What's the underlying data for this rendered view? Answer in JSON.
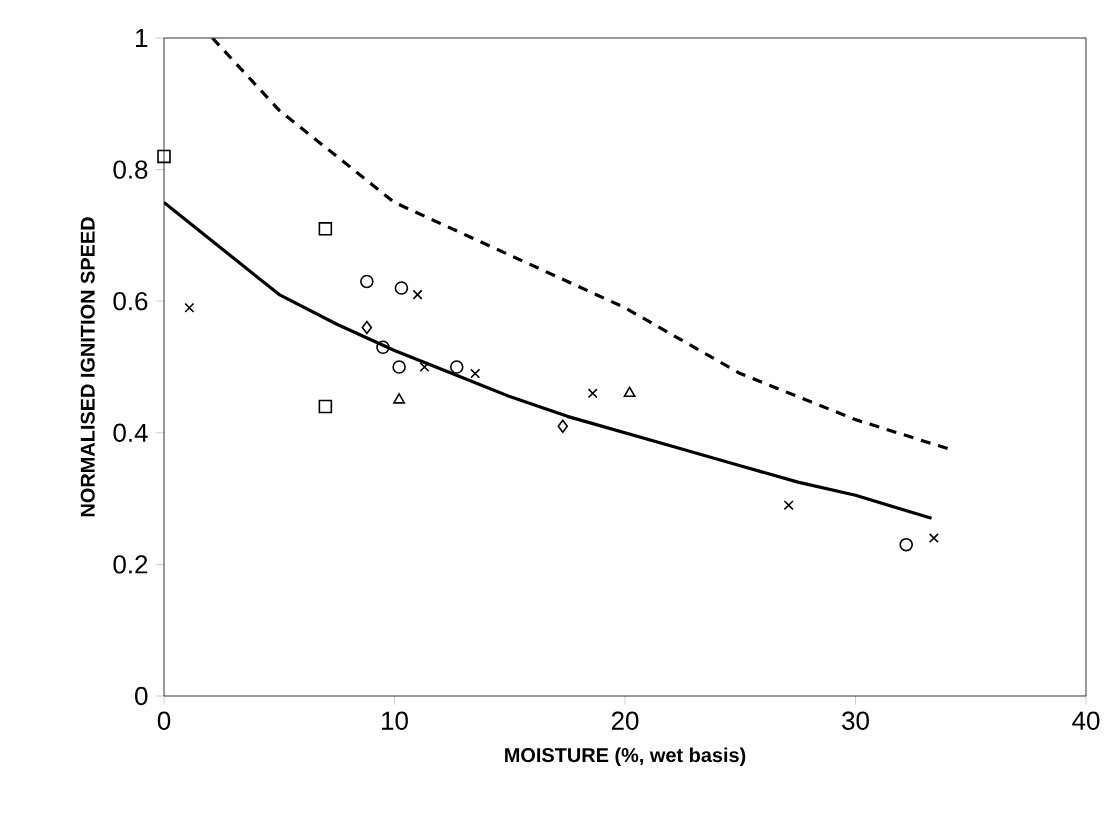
{
  "chart_data": {
    "type": "scatter",
    "xlabel": "MOISTURE (%, wet basis)",
    "ylabel": "NORMALISED IGNITION SPEED",
    "xlim": [
      0,
      40
    ],
    "ylim": [
      0,
      1
    ],
    "xticks": [
      0,
      10,
      20,
      30,
      40
    ],
    "yticks": [
      0,
      {
        "value": 0.2,
        "label": "0.2"
      },
      {
        "value": 0.4,
        "label": "0.4"
      },
      {
        "value": 0.6,
        "label": "0.6"
      },
      {
        "value": 0.8,
        "label": "0.8"
      },
      1
    ],
    "grid": false,
    "series": [
      {
        "color": "#000000",
        "marker": "square",
        "x": [
          0,
          7.0,
          7.0
        ],
        "values": [
          0.82,
          0.71,
          0.44
        ]
      },
      {
        "color": "#000000",
        "marker": "cross",
        "x": [
          1.1,
          11.0,
          11.3,
          13.5,
          18.6,
          27.1,
          33.4
        ],
        "values": [
          0.59,
          0.61,
          0.5,
          0.49,
          0.46,
          0.29,
          0.24
        ]
      },
      {
        "color": "#000000",
        "marker": "circle",
        "x": [
          8.8,
          10.2,
          10.3,
          9.5,
          12.7,
          32.2
        ],
        "values": [
          0.63,
          0.5,
          0.62,
          0.53,
          0.5,
          0.23
        ]
      },
      {
        "color": "#000000",
        "marker": "diamond",
        "x": [
          8.8,
          17.3
        ],
        "values": [
          0.56,
          0.41
        ]
      },
      {
        "color": "#000000",
        "marker": "triangle",
        "x": [
          10.2,
          20.2
        ],
        "values": [
          0.45,
          0.46
        ]
      },
      {
        "type": "line",
        "color": "#000000",
        "line_style": "solid",
        "x": [
          0,
          2.5,
          5,
          7.5,
          10,
          12.5,
          15,
          17.5,
          20,
          22.5,
          25,
          27.5,
          30,
          33.3
        ],
        "values": [
          0.75,
          0.68,
          0.61,
          0.565,
          0.525,
          0.49,
          0.455,
          0.425,
          0.4,
          0.375,
          0.35,
          0.325,
          0.305,
          0.27
        ]
      },
      {
        "type": "line",
        "color": "#000000",
        "line_style": "dashed",
        "x": [
          2.1,
          5,
          10,
          15,
          20,
          25,
          30,
          34
        ],
        "values": [
          1.0,
          0.89,
          0.75,
          0.67,
          0.59,
          0.49,
          0.42,
          0.376
        ]
      }
    ]
  }
}
